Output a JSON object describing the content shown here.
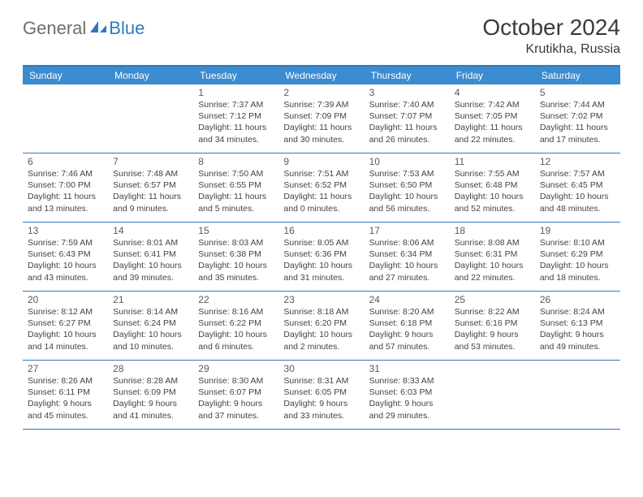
{
  "logo": {
    "part1": "General",
    "part2": "Blue"
  },
  "title": "October 2024",
  "location": "Krutikha, Russia",
  "colors": {
    "header_bg": "#3b8bd0",
    "border": "#2f79bf",
    "text": "#444444",
    "daynum": "#5a5a5a",
    "logo_gray": "#6e6e6e",
    "logo_blue": "#2f79bf"
  },
  "daynames": [
    "Sunday",
    "Monday",
    "Tuesday",
    "Wednesday",
    "Thursday",
    "Friday",
    "Saturday"
  ],
  "weeks": [
    [
      null,
      null,
      {
        "n": "1",
        "sr": "7:37 AM",
        "ss": "7:12 PM",
        "dl": "11 hours and 34 minutes."
      },
      {
        "n": "2",
        "sr": "7:39 AM",
        "ss": "7:09 PM",
        "dl": "11 hours and 30 minutes."
      },
      {
        "n": "3",
        "sr": "7:40 AM",
        "ss": "7:07 PM",
        "dl": "11 hours and 26 minutes."
      },
      {
        "n": "4",
        "sr": "7:42 AM",
        "ss": "7:05 PM",
        "dl": "11 hours and 22 minutes."
      },
      {
        "n": "5",
        "sr": "7:44 AM",
        "ss": "7:02 PM",
        "dl": "11 hours and 17 minutes."
      }
    ],
    [
      {
        "n": "6",
        "sr": "7:46 AM",
        "ss": "7:00 PM",
        "dl": "11 hours and 13 minutes."
      },
      {
        "n": "7",
        "sr": "7:48 AM",
        "ss": "6:57 PM",
        "dl": "11 hours and 9 minutes."
      },
      {
        "n": "8",
        "sr": "7:50 AM",
        "ss": "6:55 PM",
        "dl": "11 hours and 5 minutes."
      },
      {
        "n": "9",
        "sr": "7:51 AM",
        "ss": "6:52 PM",
        "dl": "11 hours and 0 minutes."
      },
      {
        "n": "10",
        "sr": "7:53 AM",
        "ss": "6:50 PM",
        "dl": "10 hours and 56 minutes."
      },
      {
        "n": "11",
        "sr": "7:55 AM",
        "ss": "6:48 PM",
        "dl": "10 hours and 52 minutes."
      },
      {
        "n": "12",
        "sr": "7:57 AM",
        "ss": "6:45 PM",
        "dl": "10 hours and 48 minutes."
      }
    ],
    [
      {
        "n": "13",
        "sr": "7:59 AM",
        "ss": "6:43 PM",
        "dl": "10 hours and 43 minutes."
      },
      {
        "n": "14",
        "sr": "8:01 AM",
        "ss": "6:41 PM",
        "dl": "10 hours and 39 minutes."
      },
      {
        "n": "15",
        "sr": "8:03 AM",
        "ss": "6:38 PM",
        "dl": "10 hours and 35 minutes."
      },
      {
        "n": "16",
        "sr": "8:05 AM",
        "ss": "6:36 PM",
        "dl": "10 hours and 31 minutes."
      },
      {
        "n": "17",
        "sr": "8:06 AM",
        "ss": "6:34 PM",
        "dl": "10 hours and 27 minutes."
      },
      {
        "n": "18",
        "sr": "8:08 AM",
        "ss": "6:31 PM",
        "dl": "10 hours and 22 minutes."
      },
      {
        "n": "19",
        "sr": "8:10 AM",
        "ss": "6:29 PM",
        "dl": "10 hours and 18 minutes."
      }
    ],
    [
      {
        "n": "20",
        "sr": "8:12 AM",
        "ss": "6:27 PM",
        "dl": "10 hours and 14 minutes."
      },
      {
        "n": "21",
        "sr": "8:14 AM",
        "ss": "6:24 PM",
        "dl": "10 hours and 10 minutes."
      },
      {
        "n": "22",
        "sr": "8:16 AM",
        "ss": "6:22 PM",
        "dl": "10 hours and 6 minutes."
      },
      {
        "n": "23",
        "sr": "8:18 AM",
        "ss": "6:20 PM",
        "dl": "10 hours and 2 minutes."
      },
      {
        "n": "24",
        "sr": "8:20 AM",
        "ss": "6:18 PM",
        "dl": "9 hours and 57 minutes."
      },
      {
        "n": "25",
        "sr": "8:22 AM",
        "ss": "6:16 PM",
        "dl": "9 hours and 53 minutes."
      },
      {
        "n": "26",
        "sr": "8:24 AM",
        "ss": "6:13 PM",
        "dl": "9 hours and 49 minutes."
      }
    ],
    [
      {
        "n": "27",
        "sr": "8:26 AM",
        "ss": "6:11 PM",
        "dl": "9 hours and 45 minutes."
      },
      {
        "n": "28",
        "sr": "8:28 AM",
        "ss": "6:09 PM",
        "dl": "9 hours and 41 minutes."
      },
      {
        "n": "29",
        "sr": "8:30 AM",
        "ss": "6:07 PM",
        "dl": "9 hours and 37 minutes."
      },
      {
        "n": "30",
        "sr": "8:31 AM",
        "ss": "6:05 PM",
        "dl": "9 hours and 33 minutes."
      },
      {
        "n": "31",
        "sr": "8:33 AM",
        "ss": "6:03 PM",
        "dl": "9 hours and 29 minutes."
      },
      null,
      null
    ]
  ],
  "labels": {
    "sunrise": "Sunrise: ",
    "sunset": "Sunset: ",
    "daylight": "Daylight: "
  }
}
